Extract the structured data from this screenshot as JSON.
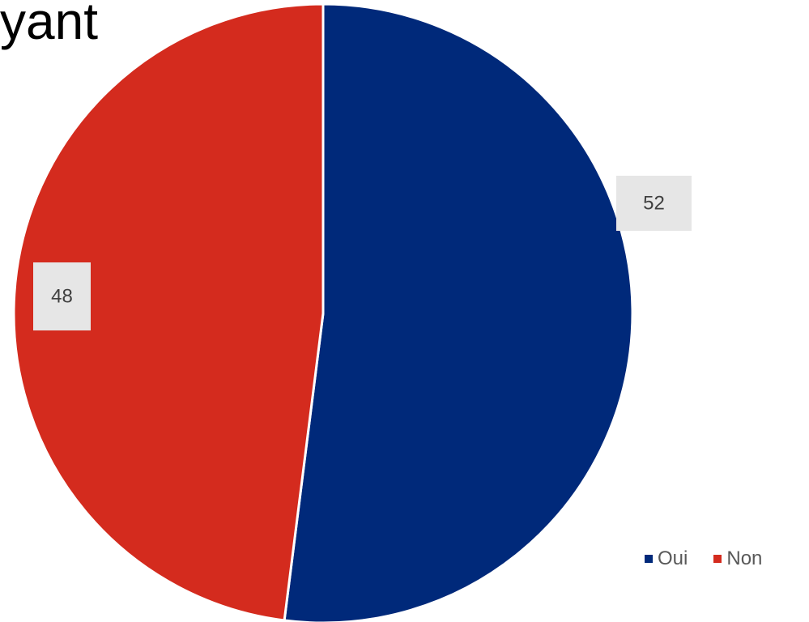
{
  "title_fragment": "yant",
  "colors": {
    "oui": "#00297A",
    "non": "#D42B1E",
    "label_bg": "#E6E6E6",
    "separator": "#FFFFFF"
  },
  "chart_data": {
    "type": "pie",
    "title": "",
    "slices": [
      {
        "label": "Oui",
        "value": 52,
        "data_label": "52"
      },
      {
        "label": "Non",
        "value": 48,
        "data_label": "48"
      }
    ],
    "legend": [
      "Oui",
      "Non"
    ],
    "legend_position": "bottom-right",
    "start_angle": "top",
    "direction": "clockwise"
  }
}
